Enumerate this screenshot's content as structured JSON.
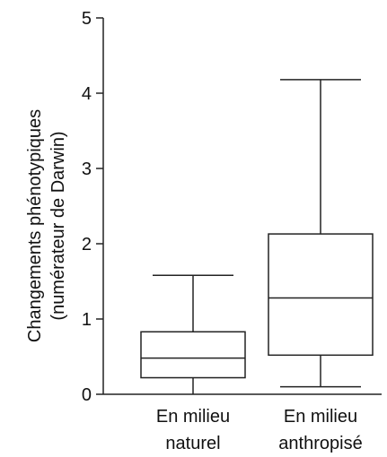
{
  "chart_data": {
    "type": "boxplot",
    "ylabel_line1": "Changements phénotypiques",
    "ylabel_line2": "(numérateur de Darwin)",
    "ylim": [
      0,
      5
    ],
    "yticks": [
      "0",
      "1",
      "2",
      "3",
      "4",
      "5"
    ],
    "boxes": [
      {
        "label_line1": "En milieu",
        "label_line2": "naturel",
        "min": 0.0,
        "q1": 0.22,
        "median": 0.48,
        "q3": 0.83,
        "max": 1.58
      },
      {
        "label_line1": "En milieu",
        "label_line2": "anthropisé",
        "min": 0.1,
        "q1": 0.52,
        "median": 1.28,
        "q3": 2.13,
        "max": 4.18
      }
    ]
  }
}
